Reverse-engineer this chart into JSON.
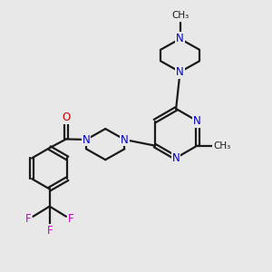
{
  "background_color": "#e8e8e8",
  "bond_color": "#1a1a1a",
  "nitrogen_color": "#0000cc",
  "oxygen_color": "#cc0000",
  "fluorine_color": "#cc00cc",
  "carbon_color": "#1a1a1a",
  "figsize": [
    3.0,
    3.0
  ],
  "dpi": 100,
  "xlim": [
    0,
    10
  ],
  "ylim": [
    0,
    10
  ]
}
